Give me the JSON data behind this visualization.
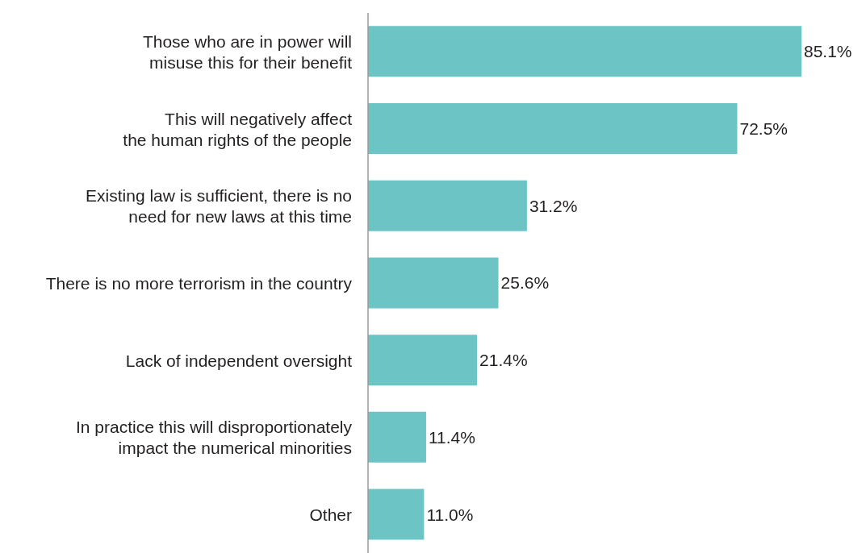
{
  "chart_data": {
    "type": "bar",
    "orientation": "horizontal",
    "categories": [
      "Those who are in power will\nmisuse this for their benefit",
      "This will negatively affect\nthe human rights of the people",
      "Existing law is sufficient, there is no\nneed for new laws at this time",
      "There is no more terrorism in the country",
      "Lack of independent oversight",
      "In practice this will disproportionately\nimpact the numerical minorities",
      "Other"
    ],
    "values": [
      85.1,
      72.5,
      31.2,
      25.6,
      21.4,
      11.4,
      11.0
    ],
    "value_labels": [
      "85.1%",
      "72.5%",
      "31.2%",
      "25.6%",
      "21.4%",
      "11.4%",
      "11.0%"
    ],
    "color": "#6cc4c4",
    "grid": false,
    "legend": false
  }
}
